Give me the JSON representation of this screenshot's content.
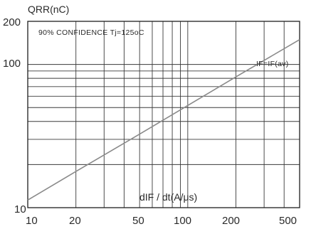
{
  "chart_data": {
    "type": "line",
    "title": "",
    "xlabel": "dIF / dt(A/μs)",
    "ylabel": "QRR(nC)",
    "x_scale": "log",
    "y_scale": "log",
    "xlim": [
      10,
      500
    ],
    "ylim": [
      10,
      200
    ],
    "x_tick_labels": [
      "10",
      "20",
      "50",
      "100",
      "200",
      "500"
    ],
    "x_tick_values": [
      10,
      20,
      50,
      100,
      200,
      500
    ],
    "y_tick_labels": [
      "10",
      "100",
      "200"
    ],
    "y_tick_values": [
      10,
      100,
      200
    ],
    "grid": true,
    "annotations": [
      "90% CONFIDENCE Tj=125oC",
      "IF=IF(av)"
    ],
    "series": [
      {
        "name": "IF=IF(av)",
        "color": "#8a8a8a",
        "x": [
          10,
          20,
          50,
          100,
          200,
          500
        ],
        "y": [
          11.3,
          17.9,
          32.6,
          51.7,
          81.9,
          149
        ]
      }
    ]
  }
}
